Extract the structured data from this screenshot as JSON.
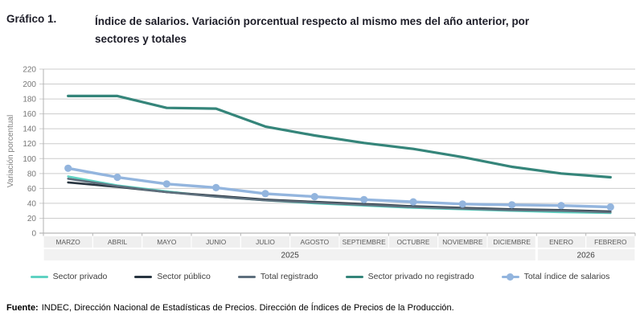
{
  "header": {
    "label": "Gráfico 1.",
    "title_lines": [
      "Índice de salarios. Variación porcentual respecto al mismo mes del año anterior, por",
      "sectores y totales"
    ]
  },
  "chart_data": {
    "type": "line",
    "title": "Índice de salarios. Variación porcentual respecto al mismo mes del año anterior, por sectores y totales",
    "xlabel": "",
    "ylabel": "Variación porcentual",
    "ylim": [
      0,
      220
    ],
    "ytick_step": 20,
    "grid": "horizontal",
    "legend_position": "bottom",
    "categories": [
      "MARZO",
      "ABRIL",
      "MAYO",
      "JUNIO",
      "JULIO",
      "AGOSTO",
      "SEPTIEMBRE",
      "OCTUBRE",
      "NOVIEMBRE",
      "DICIEMBRE",
      "ENERO",
      "FEBRERO"
    ],
    "year_groups": [
      {
        "label": "2025",
        "cols": 10
      },
      {
        "label": "2026",
        "cols": 2
      }
    ],
    "series": [
      {
        "name": "Sector privado",
        "color": "#5fd2c2",
        "marker": false,
        "width": 2.6,
        "values": [
          76,
          64,
          56,
          49,
          44,
          40,
          37,
          34,
          32,
          30,
          28,
          27
        ]
      },
      {
        "name": "Sector público",
        "color": "#283540",
        "marker": false,
        "width": 2.6,
        "values": [
          68,
          62,
          55,
          50,
          45,
          42,
          39,
          36,
          34,
          32,
          31,
          29
        ]
      },
      {
        "name": "Total registrado",
        "color": "#5e6f7d",
        "marker": false,
        "width": 2.6,
        "values": [
          73,
          63,
          55,
          49,
          44,
          41,
          38,
          35,
          33,
          31,
          30,
          28
        ]
      },
      {
        "name": "Sector privado no registrado",
        "color": "#35857a",
        "marker": false,
        "width": 3.2,
        "values": [
          184,
          184,
          168,
          167,
          143,
          131,
          121,
          113,
          102,
          89,
          80,
          75
        ]
      },
      {
        "name": "Total índice de salarios",
        "color": "#93b5de",
        "marker": true,
        "width": 3.4,
        "values": [
          87,
          75,
          66,
          61,
          53,
          49,
          45,
          42,
          39,
          38,
          37,
          35
        ]
      }
    ],
    "colors": {
      "gridline": "#cccccc",
      "zero_line": "#a6a6a6",
      "axis_line": "#b3b3b3",
      "month_band": "#efefef",
      "year_band": "#f2f2f2"
    }
  },
  "footer": {
    "source_label": "Fuente:",
    "source_text": "INDEC, Dirección Nacional de Estadísticas de Precios. Dirección de Índices de Precios de la Producción."
  }
}
